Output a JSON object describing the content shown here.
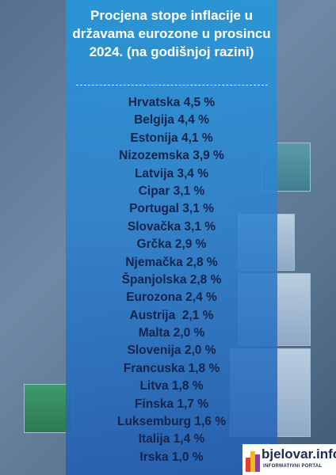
{
  "header": {
    "title": "Procjena stope inflacije u državama eurozone u prosincu 2024. (na godišnjoj razini)"
  },
  "items": [
    "Hrvatska 4,5 %",
    "Belgija 4,4 %",
    "Estonija 4,1 %",
    "Nizozemska 3,9 %",
    "Latvija 3,4 %",
    "Cipar 3,1 %",
    "Portugal 3,1 %",
    "Slovačka 3,1 %",
    "Grčka 2,9 %",
    "Njemačka 2,8 %",
    "Španjolska 2,8 %",
    "Eurozona 2,4 %",
    "Austrija  2,1 %",
    "Malta 2,0 %",
    "Slovenija 2,0 %",
    "Francuska 1,8 %",
    "Litva 1,8 %",
    "Finska 1,7 %",
    "Luksemburg 1,6 %",
    "Italija 1,4 %",
    "Irska 1,0 %"
  ],
  "logo": {
    "name": "bjelovar.info",
    "tagline": "INFORMATIVNI PORTAL"
  }
}
